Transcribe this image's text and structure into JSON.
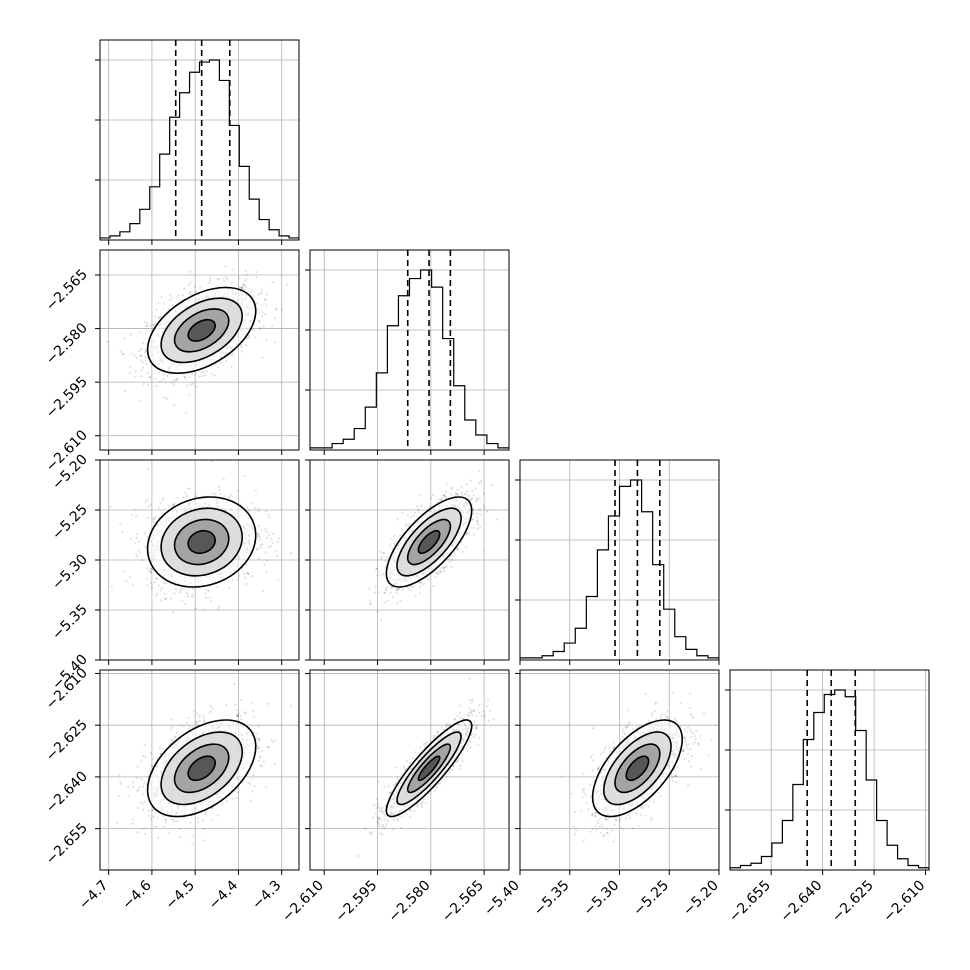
{
  "chart_data": {
    "type": "corner",
    "title": "",
    "grid": true,
    "quantile_lines": "dashed",
    "parameters": [
      {
        "index": 0,
        "range": [
          -4.72,
          -4.26
        ],
        "ticks": [
          "-4.7",
          "-4.6",
          "-4.5",
          "-4.4",
          "-4.3"
        ],
        "tick_values": [
          -4.7,
          -4.6,
          -4.5,
          -4.4,
          -4.3
        ],
        "quantiles": [
          -4.545,
          -4.485,
          -4.42
        ],
        "histogram": [
          1,
          2,
          4,
          8,
          15,
          26,
          42,
          60,
          72,
          82,
          87,
          88,
          78,
          56,
          36,
          20,
          10,
          5,
          2,
          1
        ]
      },
      {
        "index": 1,
        "range": [
          -2.614,
          -2.558
        ],
        "ticks": [
          "-2.610",
          "-2.595",
          "-2.580",
          "-2.565"
        ],
        "tick_values": [
          -2.61,
          -2.595,
          -2.58,
          -2.565
        ],
        "quantiles": [
          -2.5865,
          -2.5805,
          -2.5745
        ],
        "histogram": [
          1,
          1,
          3,
          5,
          10,
          20,
          36,
          58,
          72,
          80,
          84,
          76,
          52,
          30,
          14,
          7,
          3,
          1
        ]
      },
      {
        "index": 2,
        "range": [
          -5.4,
          -5.2
        ],
        "ticks": [
          "-5.40",
          "-5.35",
          "-5.30",
          "-5.25",
          "-5.20"
        ],
        "tick_values": [
          -5.4,
          -5.35,
          -5.3,
          -5.25,
          -5.2
        ],
        "quantiles": [
          -5.3045,
          -5.282,
          -5.2595
        ],
        "histogram": [
          1,
          1,
          2,
          4,
          8,
          15,
          30,
          52,
          68,
          82,
          85,
          70,
          45,
          24,
          11,
          5,
          2,
          1
        ]
      },
      {
        "index": 3,
        "range": [
          -2.667,
          -2.609
        ],
        "ticks": [
          "-2.655",
          "-2.640",
          "-2.625",
          "-2.610"
        ],
        "tick_values": [
          -2.655,
          -2.64,
          -2.625,
          -2.61
        ],
        "quantiles": [
          -2.6445,
          -2.6375,
          -2.6305
        ],
        "histogram": [
          1,
          2,
          3,
          6,
          12,
          22,
          38,
          58,
          70,
          78,
          80,
          77,
          62,
          40,
          22,
          11,
          5,
          2,
          1
        ]
      }
    ],
    "correlations": {
      "1-0": 0.45,
      "2-0": 0.15,
      "2-1": 0.7,
      "3-0": 0.45,
      "3-1": 0.88,
      "3-2": 0.6
    },
    "contour_levels": [
      0.5,
      1.0,
      1.5,
      2.0
    ]
  }
}
